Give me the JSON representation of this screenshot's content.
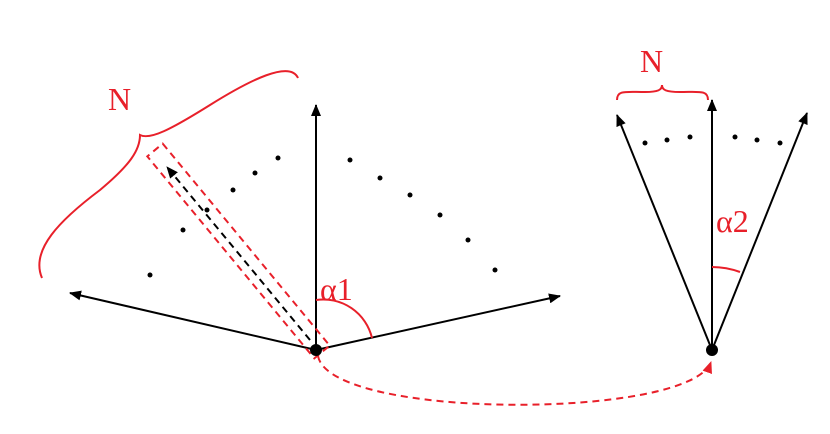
{
  "labels": {
    "n_left": "N",
    "alpha1": "α1",
    "n_right": "N",
    "alpha2": "α2"
  }
}
